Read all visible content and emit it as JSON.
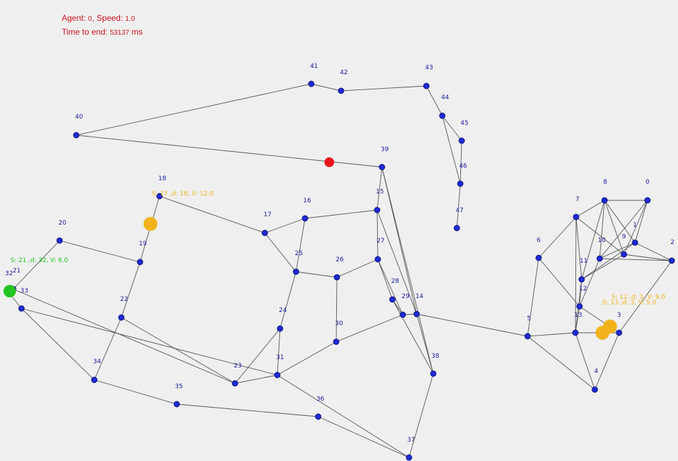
{
  "hud": {
    "agent_prefix": "Agent: ",
    "agent_id": "0",
    "speed_prefix": ", Speed: ",
    "speed": "1.0",
    "time_prefix": "Time to end: ",
    "time_value": "53137",
    "time_unit": " ms"
  },
  "colors": {
    "background": "#efefef",
    "node": "#1f2bd6",
    "edge": "#555555",
    "agent": "#e8141a",
    "vehicle_yellow": "#f2b21b",
    "vehicle_green": "#22c422",
    "hud_text": "#c8141e"
  },
  "nodes": [
    {
      "id": "0"
    },
    {
      "id": "1"
    },
    {
      "id": "2"
    },
    {
      "id": "3"
    },
    {
      "id": "4"
    },
    {
      "id": "5"
    },
    {
      "id": "6"
    },
    {
      "id": "7"
    },
    {
      "id": "8"
    },
    {
      "id": "9"
    },
    {
      "id": "10"
    },
    {
      "id": "11"
    },
    {
      "id": "12"
    },
    {
      "id": "13"
    },
    {
      "id": "14"
    },
    {
      "id": "15"
    },
    {
      "id": "16"
    },
    {
      "id": "17"
    },
    {
      "id": "18"
    },
    {
      "id": "19"
    },
    {
      "id": "20"
    },
    {
      "id": "21"
    },
    {
      "id": "22"
    },
    {
      "id": "23"
    },
    {
      "id": "24"
    },
    {
      "id": "25"
    },
    {
      "id": "26"
    },
    {
      "id": "27"
    },
    {
      "id": "28"
    },
    {
      "id": "29"
    },
    {
      "id": "30"
    },
    {
      "id": "31"
    },
    {
      "id": "32"
    },
    {
      "id": "33"
    },
    {
      "id": "34"
    },
    {
      "id": "35"
    },
    {
      "id": "36"
    },
    {
      "id": "37"
    },
    {
      "id": "38"
    },
    {
      "id": "39"
    },
    {
      "id": "40"
    },
    {
      "id": "41"
    },
    {
      "id": "42"
    },
    {
      "id": "43"
    },
    {
      "id": "44"
    },
    {
      "id": "45"
    },
    {
      "id": "46"
    },
    {
      "id": "47"
    }
  ],
  "edges": [
    [
      "40",
      "41"
    ],
    [
      "41",
      "42"
    ],
    [
      "42",
      "43"
    ],
    [
      "43",
      "44"
    ],
    [
      "44",
      "45"
    ],
    [
      "44",
      "46"
    ],
    [
      "45",
      "46"
    ],
    [
      "46",
      "47"
    ],
    [
      "40",
      "39"
    ],
    [
      "39",
      "15"
    ],
    [
      "39",
      "38"
    ],
    [
      "39",
      "14"
    ],
    [
      "15",
      "16"
    ],
    [
      "15",
      "27"
    ],
    [
      "15",
      "14"
    ],
    [
      "16",
      "17"
    ],
    [
      "16",
      "25"
    ],
    [
      "17",
      "18"
    ],
    [
      "17",
      "25"
    ],
    [
      "25",
      "26"
    ],
    [
      "25",
      "24"
    ],
    [
      "26",
      "27"
    ],
    [
      "26",
      "30"
    ],
    [
      "27",
      "28"
    ],
    [
      "27",
      "29"
    ],
    [
      "28",
      "29"
    ],
    [
      "28",
      "38"
    ],
    [
      "29",
      "14"
    ],
    [
      "29",
      "30"
    ],
    [
      "14",
      "5"
    ],
    [
      "14",
      "38"
    ],
    [
      "38",
      "37"
    ],
    [
      "37",
      "36"
    ],
    [
      "37",
      "31"
    ],
    [
      "30",
      "31"
    ],
    [
      "31",
      "24"
    ],
    [
      "31",
      "23"
    ],
    [
      "31",
      "33"
    ],
    [
      "24",
      "23"
    ],
    [
      "23",
      "22"
    ],
    [
      "23",
      "21"
    ],
    [
      "18",
      "19"
    ],
    [
      "19",
      "20"
    ],
    [
      "19",
      "22"
    ],
    [
      "20",
      "21"
    ],
    [
      "21",
      "32"
    ],
    [
      "32",
      "33"
    ],
    [
      "33",
      "34"
    ],
    [
      "22",
      "34"
    ],
    [
      "34",
      "35"
    ],
    [
      "35",
      "36"
    ],
    [
      "5",
      "6"
    ],
    [
      "5",
      "13"
    ],
    [
      "5",
      "4"
    ],
    [
      "6",
      "7"
    ],
    [
      "6",
      "12"
    ],
    [
      "7",
      "8"
    ],
    [
      "7",
      "11"
    ],
    [
      "7",
      "13"
    ],
    [
      "7",
      "9"
    ],
    [
      "8",
      "0"
    ],
    [
      "8",
      "10"
    ],
    [
      "8",
      "1"
    ],
    [
      "8",
      "9"
    ],
    [
      "8",
      "11"
    ],
    [
      "0",
      "1"
    ],
    [
      "0",
      "9"
    ],
    [
      "0",
      "10"
    ],
    [
      "1",
      "2"
    ],
    [
      "1",
      "10"
    ],
    [
      "9",
      "2"
    ],
    [
      "9",
      "11"
    ],
    [
      "10",
      "12"
    ],
    [
      "10",
      "2"
    ],
    [
      "2",
      "3"
    ],
    [
      "11",
      "12"
    ],
    [
      "11",
      "13"
    ],
    [
      "11",
      "1"
    ],
    [
      "12",
      "13"
    ],
    [
      "12",
      "3"
    ],
    [
      "13",
      "3"
    ],
    [
      "13",
      "4"
    ],
    [
      "3",
      "4"
    ]
  ],
  "agent": {
    "label": "agent-marker"
  },
  "vehicles": [
    {
      "label": "S: 17 ,d: 18, V: 12.0",
      "color": "yellow"
    },
    {
      "label": "S: 21 ,d: 32, V: 8.0",
      "color": "green"
    },
    {
      "label": "S: 12 ,d: 3, V: 9.0",
      "color": "yellow"
    },
    {
      "label": "S: 13 ,d: 3, V: 5.0",
      "color": "yellow"
    }
  ]
}
